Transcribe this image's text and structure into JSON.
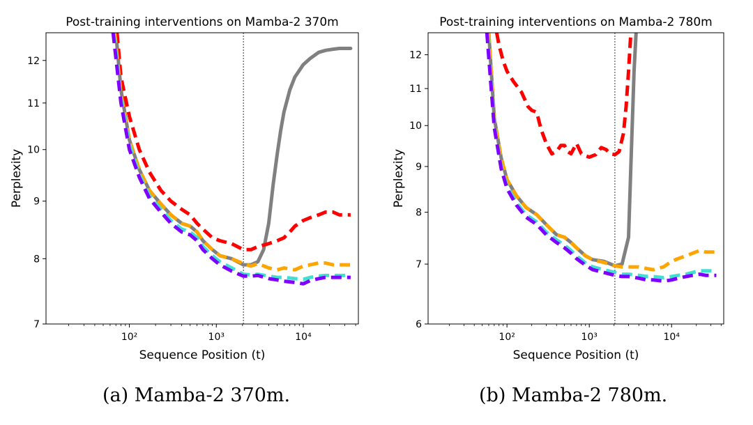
{
  "chart_data": [
    {
      "type": "line",
      "title": "Post-training interventions on Mamba-2 370m",
      "xlabel": "Sequence Position (t)",
      "ylabel": "Perplexity",
      "xscale": "log",
      "yscale": "log",
      "xlim": [
        11,
        43000
      ],
      "ylim": [
        7,
        12.7
      ],
      "yticks": [
        7,
        8,
        9,
        10,
        11,
        12
      ],
      "ytick_labels": [
        "7",
        "8",
        "9",
        "10",
        "11",
        "12"
      ],
      "xticks": [
        100,
        1000,
        10000
      ],
      "xtick_labels": [
        "10²",
        "10³",
        "10⁴"
      ],
      "vline_x": 2048,
      "series": [
        {
          "color": "#808080",
          "style": "solid",
          "x": [
            70,
            80,
            100,
            130,
            170,
            230,
            300,
            400,
            500,
            600,
            700,
            900,
            1100,
            1500,
            2048,
            2500,
            3000,
            3500,
            4000,
            4500,
            5000,
            5500,
            6000,
            7000,
            8000,
            10000,
            12000,
            15000,
            18000,
            22000,
            26000,
            30000,
            35000
          ],
          "y": [
            12.7,
            11.3,
            10.2,
            9.6,
            9.2,
            8.95,
            8.75,
            8.6,
            8.55,
            8.45,
            8.3,
            8.15,
            8.05,
            8.0,
            7.9,
            7.9,
            7.95,
            8.15,
            8.6,
            9.3,
            9.9,
            10.4,
            10.8,
            11.3,
            11.6,
            11.9,
            12.05,
            12.2,
            12.25,
            12.28,
            12.3,
            12.3,
            12.3
          ]
        },
        {
          "color": "#ff0000",
          "style": "dashed",
          "x": [
            72,
            80,
            100,
            130,
            170,
            230,
            300,
            400,
            500,
            600,
            700,
            900,
            1100,
            1500,
            2048,
            2500,
            3000,
            4000,
            5000,
            6000,
            7000,
            8000,
            10000,
            12000,
            15000,
            18000,
            22000,
            26000,
            30000,
            35000
          ],
          "y": [
            12.7,
            11.6,
            10.7,
            10.0,
            9.55,
            9.2,
            9.0,
            8.85,
            8.75,
            8.6,
            8.5,
            8.35,
            8.3,
            8.25,
            8.15,
            8.15,
            8.2,
            8.25,
            8.3,
            8.35,
            8.45,
            8.55,
            8.65,
            8.7,
            8.75,
            8.8,
            8.8,
            8.75,
            8.75,
            8.75
          ]
        },
        {
          "color": "#ffa500",
          "style": "dashed",
          "x": [
            68,
            80,
            100,
            130,
            170,
            230,
            300,
            400,
            500,
            600,
            700,
            900,
            1100,
            1500,
            2048,
            2500,
            3000,
            4000,
            5000,
            6000,
            8000,
            10000,
            12000,
            15000,
            18000,
            22000,
            26000,
            30000,
            35000
          ],
          "y": [
            12.7,
            11.2,
            10.2,
            9.6,
            9.2,
            8.95,
            8.75,
            8.6,
            8.55,
            8.45,
            8.3,
            8.15,
            8.05,
            8.0,
            7.92,
            7.88,
            7.92,
            7.85,
            7.82,
            7.85,
            7.82,
            7.88,
            7.9,
            7.93,
            7.93,
            7.9,
            7.9,
            7.9,
            7.9
          ]
        },
        {
          "color": "#40e0d0",
          "style": "dashed",
          "x": [
            66,
            80,
            100,
            130,
            170,
            230,
            300,
            400,
            500,
            600,
            700,
            900,
            1100,
            1500,
            2048,
            2500,
            3000,
            4000,
            5000,
            6000,
            8000,
            10000,
            12000,
            15000,
            18000,
            22000,
            26000,
            30000,
            35000
          ],
          "y": [
            12.7,
            11.1,
            10.1,
            9.5,
            9.1,
            8.85,
            8.65,
            8.5,
            8.45,
            8.35,
            8.2,
            8.05,
            7.95,
            7.85,
            7.75,
            7.74,
            7.75,
            7.72,
            7.7,
            7.7,
            7.68,
            7.67,
            7.7,
            7.72,
            7.73,
            7.73,
            7.73,
            7.73,
            7.73
          ]
        },
        {
          "color": "#7f00ff",
          "style": "dashed",
          "x": [
            65,
            80,
            100,
            130,
            170,
            230,
            300,
            400,
            500,
            600,
            700,
            900,
            1100,
            1500,
            2048,
            2500,
            3000,
            4000,
            5000,
            6000,
            8000,
            10000,
            12000,
            15000,
            18000,
            22000,
            26000,
            30000,
            35000
          ],
          "y": [
            12.7,
            11.0,
            10.0,
            9.45,
            9.05,
            8.8,
            8.6,
            8.45,
            8.4,
            8.3,
            8.15,
            8.0,
            7.9,
            7.8,
            7.72,
            7.72,
            7.73,
            7.68,
            7.66,
            7.64,
            7.62,
            7.6,
            7.65,
            7.68,
            7.7,
            7.7,
            7.7,
            7.7,
            7.7
          ]
        }
      ]
    },
    {
      "type": "line",
      "title": "Post-training interventions on Mamba-2 780m",
      "xlabel": "Sequence Position (t)",
      "ylabel": "Perplexity",
      "xscale": "log",
      "yscale": "log",
      "xlim": [
        11,
        43000
      ],
      "ylim": [
        6,
        12.7
      ],
      "yticks": [
        6,
        7,
        8,
        9,
        10,
        11,
        12
      ],
      "ytick_labels": [
        "6",
        "7",
        "8",
        "9",
        "10",
        "11",
        "12"
      ],
      "xticks": [
        100,
        1000,
        10000
      ],
      "xtick_labels": [
        "10²",
        "10³",
        "10⁴"
      ],
      "vline_x": 2048,
      "series": [
        {
          "color": "#808080",
          "style": "solid",
          "x": [
            60,
            70,
            85,
            100,
            130,
            170,
            230,
            300,
            400,
            500,
            600,
            700,
            900,
            1100,
            1500,
            2048,
            2500,
            3000,
            3200,
            3500,
            3700
          ],
          "y": [
            12.7,
            10.2,
            9.2,
            8.7,
            8.35,
            8.1,
            7.95,
            7.75,
            7.55,
            7.5,
            7.4,
            7.3,
            7.15,
            7.08,
            7.05,
            6.97,
            7.0,
            7.5,
            9.0,
            11.5,
            12.7
          ]
        },
        {
          "color": "#ff0000",
          "style": "dashed",
          "x": [
            75,
            80,
            90,
            100,
            120,
            150,
            180,
            200,
            230,
            260,
            300,
            350,
            400,
            450,
            500,
            550,
            600,
            700,
            800,
            900,
            1000,
            1200,
            1400,
            1600,
            1800,
            2048,
            2300,
            2600,
            2800,
            3000,
            3200
          ],
          "y": [
            12.7,
            12.3,
            11.8,
            11.5,
            11.2,
            10.9,
            10.5,
            10.4,
            10.35,
            9.9,
            9.55,
            9.3,
            9.35,
            9.5,
            9.5,
            9.35,
            9.3,
            9.55,
            9.3,
            9.25,
            9.22,
            9.28,
            9.45,
            9.4,
            9.3,
            9.28,
            9.35,
            9.8,
            10.5,
            11.5,
            12.7
          ]
        },
        {
          "color": "#ffa500",
          "style": "dashed",
          "x": [
            60,
            70,
            85,
            100,
            130,
            170,
            230,
            300,
            400,
            500,
            600,
            700,
            900,
            1100,
            1500,
            2048,
            2500,
            3000,
            4000,
            5000,
            6000,
            8000,
            10000,
            12000,
            15000,
            18000,
            22000,
            26000,
            30000,
            35000
          ],
          "y": [
            12.7,
            10.2,
            9.2,
            8.7,
            8.35,
            8.1,
            7.95,
            7.75,
            7.55,
            7.5,
            7.4,
            7.3,
            7.15,
            7.08,
            7.03,
            6.97,
            6.95,
            6.95,
            6.95,
            6.92,
            6.9,
            6.95,
            7.05,
            7.1,
            7.15,
            7.2,
            7.25,
            7.22,
            7.22,
            7.22
          ]
        },
        {
          "color": "#40e0d0",
          "style": "dashed",
          "x": [
            58,
            70,
            85,
            100,
            130,
            170,
            230,
            300,
            400,
            500,
            600,
            700,
            900,
            1100,
            1500,
            2048,
            2500,
            3000,
            4000,
            5000,
            6000,
            8000,
            10000,
            12000,
            15000,
            18000,
            22000,
            26000,
            30000,
            35000
          ],
          "y": [
            12.7,
            10.0,
            9.0,
            8.55,
            8.2,
            7.95,
            7.8,
            7.6,
            7.45,
            7.35,
            7.25,
            7.15,
            7.02,
            6.95,
            6.9,
            6.85,
            6.82,
            6.82,
            6.8,
            6.78,
            6.78,
            6.76,
            6.78,
            6.8,
            6.82,
            6.85,
            6.88,
            6.88,
            6.88,
            6.88
          ]
        },
        {
          "color": "#7f00ff",
          "style": "dashed",
          "x": [
            57,
            70,
            85,
            100,
            130,
            170,
            230,
            300,
            400,
            500,
            600,
            700,
            900,
            1100,
            1500,
            2048,
            2500,
            3000,
            4000,
            5000,
            6000,
            8000,
            10000,
            12000,
            15000,
            18000,
            22000,
            26000,
            30000,
            35000
          ],
          "y": [
            12.7,
            9.95,
            8.95,
            8.5,
            8.15,
            7.9,
            7.75,
            7.55,
            7.4,
            7.3,
            7.2,
            7.1,
            6.98,
            6.9,
            6.85,
            6.8,
            6.78,
            6.78,
            6.75,
            6.72,
            6.72,
            6.7,
            6.72,
            6.75,
            6.78,
            6.8,
            6.82,
            6.8,
            6.8,
            6.8
          ]
        }
      ]
    }
  ],
  "captions": [
    "(a) Mamba-2 370m.",
    "(b) Mamba-2 780m."
  ]
}
